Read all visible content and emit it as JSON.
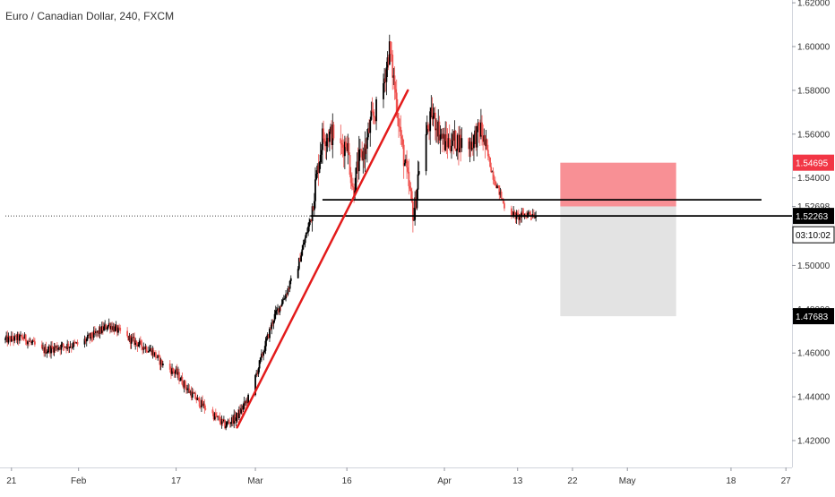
{
  "header": {
    "symbol_title": "Euro / Canadian Dollar, 240, FXCM"
  },
  "colors": {
    "background": "#ffffff",
    "candle_up": "#000000",
    "candle_down": "#ef5350",
    "trendline": "#e31b1b",
    "horizontal_line": "#000000",
    "stop_zone": "#f88a8f",
    "target_zone": "#e1e1e1",
    "axis_text": "#333333",
    "price_label_red": "#f23645",
    "price_label_black": "#000000"
  },
  "price_axis": {
    "tick_labels": [
      "1.62000",
      "1.60000",
      "1.58000",
      "1.56000",
      "1.54000",
      "1.52698",
      "1.50000",
      "1.48000",
      "1.46000",
      "1.44000",
      "1.42000"
    ],
    "price_badges": [
      {
        "text": "1.54695",
        "style": "red"
      },
      {
        "text": "1.52263",
        "style": "black"
      },
      {
        "text": "03:10:02",
        "style": "outline"
      },
      {
        "text": "1.47683",
        "style": "black"
      }
    ]
  },
  "time_axis": {
    "tick_labels": [
      "21",
      "Feb",
      "17",
      "Mar",
      "16",
      "Apr",
      "13",
      "22",
      "May",
      "18",
      "27"
    ]
  },
  "chart_data": {
    "type": "candlestick",
    "title": "Euro / Canadian Dollar, 240, FXCM",
    "timeframe": "240",
    "ylim": [
      1.412,
      1.625
    ],
    "x_domain": [
      "2020-01-20",
      "2020-05-28"
    ],
    "price_path": [
      [
        "2020-01-20",
        1.466
      ],
      [
        "2020-01-23",
        1.467
      ],
      [
        "2020-01-26",
        1.461
      ],
      [
        "2020-01-29",
        1.463
      ],
      [
        "2020-02-01",
        1.464
      ],
      [
        "2020-02-04",
        1.469
      ],
      [
        "2020-02-06",
        1.473
      ],
      [
        "2020-02-09",
        1.467
      ],
      [
        "2020-02-11",
        1.464
      ],
      [
        "2020-02-13",
        1.461
      ],
      [
        "2020-02-15",
        1.454
      ],
      [
        "2020-02-17",
        1.451
      ],
      [
        "2020-02-19",
        1.443
      ],
      [
        "2020-02-21",
        1.437
      ],
      [
        "2020-02-23",
        1.432
      ],
      [
        "2020-02-25",
        1.427
      ],
      [
        "2020-02-27",
        1.431
      ],
      [
        "2020-02-29",
        1.44
      ],
      [
        "2020-03-02",
        1.458
      ],
      [
        "2020-03-04",
        1.476
      ],
      [
        "2020-03-06",
        1.487
      ],
      [
        "2020-03-08",
        1.5
      ],
      [
        "2020-03-10",
        1.521
      ],
      [
        "2020-03-12",
        1.559
      ],
      [
        "2020-03-14",
        1.56
      ],
      [
        "2020-03-15",
        1.553
      ],
      [
        "2020-03-16",
        1.557
      ],
      [
        "2020-03-17",
        1.534
      ],
      [
        "2020-03-18",
        1.548
      ],
      [
        "2020-03-19",
        1.553
      ],
      [
        "2020-03-20",
        1.566
      ],
      [
        "2020-03-21",
        1.572
      ],
      [
        "2020-03-22",
        1.583
      ],
      [
        "2020-03-23",
        1.599
      ],
      [
        "2020-03-24",
        1.578
      ],
      [
        "2020-03-25",
        1.555
      ],
      [
        "2020-03-27",
        1.522
      ],
      [
        "2020-03-28",
        1.55
      ],
      [
        "2020-03-30",
        1.569
      ],
      [
        "2020-04-01",
        1.556
      ],
      [
        "2020-04-03",
        1.557
      ],
      [
        "2020-04-05",
        1.555
      ],
      [
        "2020-04-07",
        1.562
      ],
      [
        "2020-04-09",
        1.541
      ],
      [
        "2020-04-11",
        1.526
      ],
      [
        "2020-04-13",
        1.522
      ],
      [
        "2020-04-15",
        1.524
      ],
      [
        "2020-04-16",
        1.523
      ]
    ],
    "trendline": {
      "from": [
        "2020-02-27",
        1.426
      ],
      "to": [
        "2020-03-26",
        1.58
      ],
      "color": "#e31b1b"
    },
    "horizontal_levels": [
      {
        "price": 1.53,
        "from": "2020-03-12",
        "to": "2020-05-23"
      },
      {
        "price": 1.52263,
        "from": "2020-03-10",
        "to": "2020-05-28"
      },
      {
        "price": 1.52263,
        "from": "2020-01-20",
        "to": "2020-05-28",
        "dotted": true
      }
    ],
    "position": {
      "type": "short",
      "from": "2020-04-20",
      "to": "2020-05-09",
      "entry": 1.52698,
      "stop": 1.54695,
      "target": 1.47683
    },
    "last_price": 1.52263,
    "countdown": "03:10:02"
  }
}
